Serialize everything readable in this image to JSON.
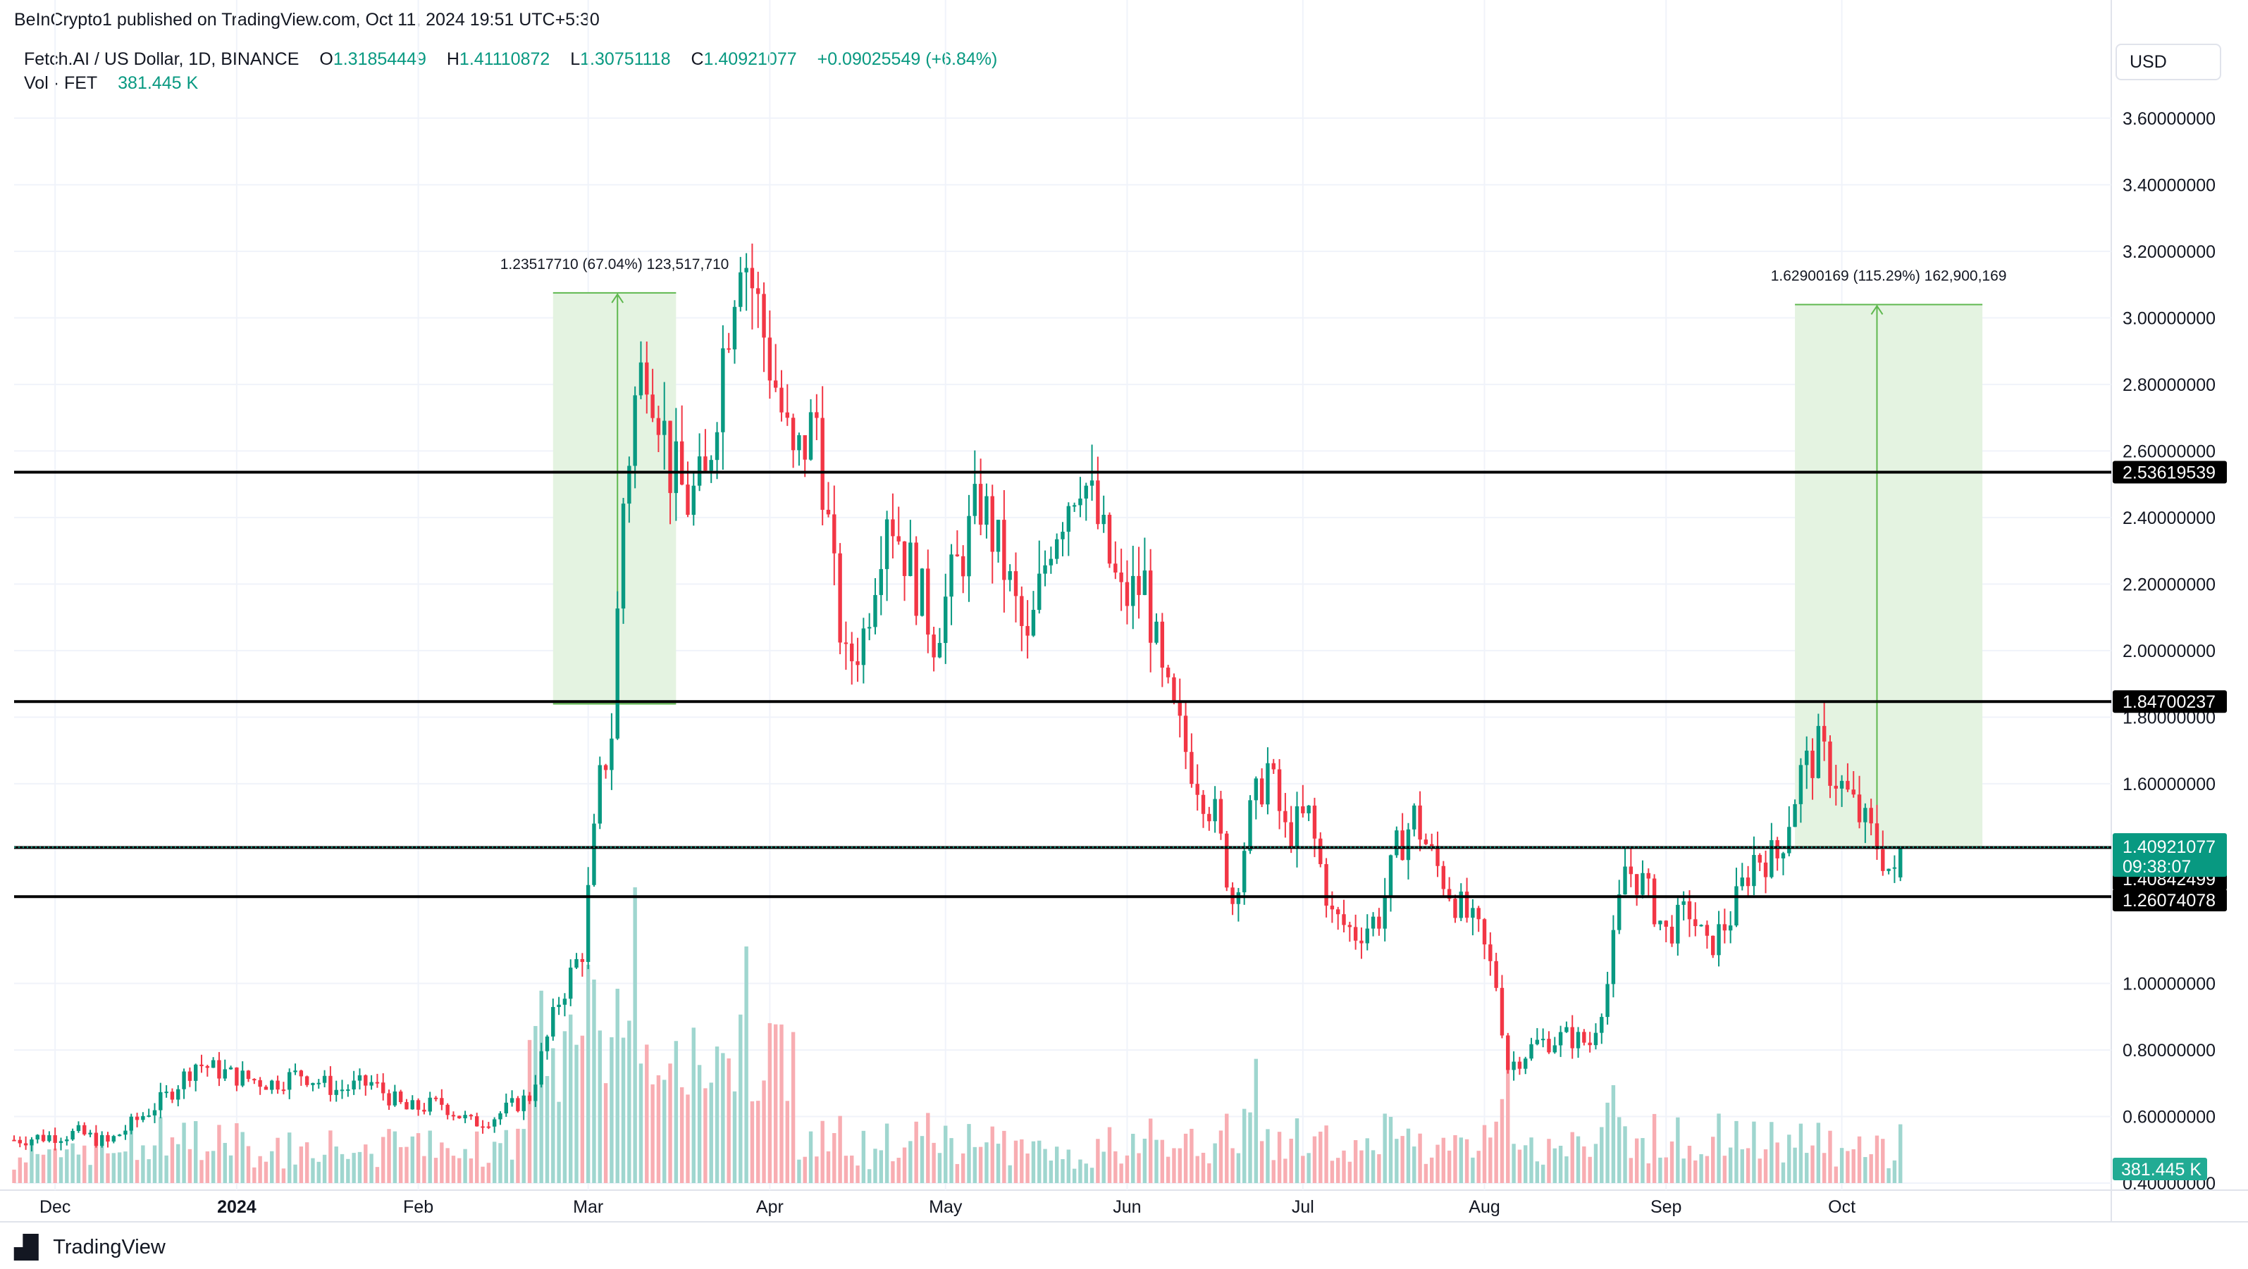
{
  "header": {
    "publisher_text": "BeInCrypto1 published on TradingView.com, Oct 11, 2024 19:51 UTC+5:30"
  },
  "legend": {
    "symbol": "Fetch.AI / US Dollar, 1D, BINANCE",
    "open_label": "O",
    "open": "1.31854449",
    "high_label": "H",
    "high": "1.41110872",
    "low_label": "L",
    "low": "1.30751118",
    "close_label": "C",
    "close": "1.40921077",
    "change": "+0.09025549 (+6.84%)",
    "volume_label": "Vol · FET",
    "volume": "381.445 K"
  },
  "currency_button": "USD",
  "footer": {
    "brand": "TradingView"
  },
  "colors": {
    "up": "#089981",
    "down": "#f23645",
    "up_volume": "#9fd6cf",
    "down_volume": "#f8adb2",
    "measure_fill": "#e4f3e1",
    "measure_line": "#5fb84f"
  },
  "chart_data": {
    "type": "candlestick",
    "symbol": "FETUSD",
    "interval": "1D",
    "y_axis": {
      "scale": "linear",
      "range": [
        0.4,
        3.68
      ],
      "ticks": [
        "3.60000000",
        "3.40000000",
        "3.20000000",
        "3.00000000",
        "2.80000000",
        "2.60000000",
        "2.40000000",
        "2.20000000",
        "2.00000000",
        "1.80000000",
        "1.60000000",
        "1.00000000",
        "0.80000000",
        "0.60000000",
        "0.40000000"
      ]
    },
    "x_axis": {
      "ticks": [
        {
          "label": "Dec",
          "date": "2023-12-01",
          "bold": false
        },
        {
          "label": "2024",
          "date": "2024-01-01",
          "bold": true
        },
        {
          "label": "Feb",
          "date": "2024-02-01",
          "bold": false
        },
        {
          "label": "Mar",
          "date": "2024-03-01",
          "bold": false
        },
        {
          "label": "Apr",
          "date": "2024-04-01",
          "bold": false
        },
        {
          "label": "May",
          "date": "2024-05-01",
          "bold": false
        },
        {
          "label": "Jun",
          "date": "2024-06-01",
          "bold": false
        },
        {
          "label": "Jul",
          "date": "2024-07-01",
          "bold": false
        },
        {
          "label": "Aug",
          "date": "2024-08-01",
          "bold": false
        },
        {
          "label": "Sep",
          "date": "2024-09-01",
          "bold": false
        },
        {
          "label": "Oct",
          "date": "2024-10-01",
          "bold": false
        }
      ],
      "start": "2023-11-24",
      "end": "2024-11-16"
    },
    "price_path": [
      [
        "2023-11-24",
        0.53
      ],
      [
        "2023-12-05",
        0.55
      ],
      [
        "2023-12-10",
        0.52
      ],
      [
        "2023-12-20",
        0.66
      ],
      [
        "2023-12-25",
        0.76
      ],
      [
        "2024-01-01",
        0.72
      ],
      [
        "2024-01-07",
        0.7
      ],
      [
        "2024-01-12",
        0.73
      ],
      [
        "2024-01-18",
        0.68
      ],
      [
        "2024-01-24",
        0.7
      ],
      [
        "2024-01-30",
        0.62
      ],
      [
        "2024-02-05",
        0.64
      ],
      [
        "2024-02-10",
        0.58
      ],
      [
        "2024-02-14",
        0.6
      ],
      [
        "2024-02-20",
        0.66
      ],
      [
        "2024-02-25",
        0.95
      ],
      [
        "2024-02-29",
        1.1
      ],
      [
        "2024-03-03",
        1.6
      ],
      [
        "2024-03-05",
        1.76
      ],
      [
        "2024-03-07",
        2.45
      ],
      [
        "2024-03-09",
        2.75
      ],
      [
        "2024-03-11",
        2.9
      ],
      [
        "2024-03-13",
        2.75
      ],
      [
        "2024-03-15",
        2.55
      ],
      [
        "2024-03-18",
        2.45
      ],
      [
        "2024-03-21",
        2.5
      ],
      [
        "2024-03-24",
        2.9
      ],
      [
        "2024-03-27",
        3.25
      ],
      [
        "2024-03-29",
        3.1
      ],
      [
        "2024-04-02",
        2.8
      ],
      [
        "2024-04-05",
        2.55
      ],
      [
        "2024-04-09",
        2.7
      ],
      [
        "2024-04-12",
        2.2
      ],
      [
        "2024-04-14",
        1.95
      ],
      [
        "2024-04-17",
        2.05
      ],
      [
        "2024-04-21",
        2.45
      ],
      [
        "2024-04-25",
        2.25
      ],
      [
        "2024-04-29",
        2.05
      ],
      [
        "2024-05-03",
        2.25
      ],
      [
        "2024-05-07",
        2.45
      ],
      [
        "2024-05-11",
        2.25
      ],
      [
        "2024-05-15",
        2.0
      ],
      [
        "2024-05-19",
        2.35
      ],
      [
        "2024-05-24",
        2.55
      ],
      [
        "2024-05-27",
        2.38
      ],
      [
        "2024-05-31",
        2.15
      ],
      [
        "2024-06-04",
        2.2
      ],
      [
        "2024-06-07",
        1.9
      ],
      [
        "2024-06-11",
        1.7
      ],
      [
        "2024-06-16",
        1.5
      ],
      [
        "2024-06-19",
        1.25
      ],
      [
        "2024-06-22",
        1.5
      ],
      [
        "2024-06-25",
        1.65
      ],
      [
        "2024-06-28",
        1.45
      ],
      [
        "2024-07-02",
        1.5
      ],
      [
        "2024-07-06",
        1.2
      ],
      [
        "2024-07-10",
        1.15
      ],
      [
        "2024-07-14",
        1.2
      ],
      [
        "2024-07-17",
        1.4
      ],
      [
        "2024-07-20",
        1.5
      ],
      [
        "2024-07-23",
        1.38
      ],
      [
        "2024-07-27",
        1.25
      ],
      [
        "2024-07-31",
        1.15
      ],
      [
        "2024-08-03",
        1.0
      ],
      [
        "2024-08-05",
        0.75
      ],
      [
        "2024-08-10",
        0.82
      ],
      [
        "2024-08-15",
        0.84
      ],
      [
        "2024-08-19",
        0.82
      ],
      [
        "2024-08-22",
        1.0
      ],
      [
        "2024-08-25",
        1.35
      ],
      [
        "2024-08-28",
        1.3
      ],
      [
        "2024-09-01",
        1.15
      ],
      [
        "2024-09-05",
        1.22
      ],
      [
        "2024-09-08",
        1.1
      ],
      [
        "2024-09-12",
        1.2
      ],
      [
        "2024-09-16",
        1.38
      ],
      [
        "2024-09-20",
        1.38
      ],
      [
        "2024-09-24",
        1.63
      ],
      [
        "2024-09-27",
        1.7
      ],
      [
        "2024-09-30",
        1.62
      ],
      [
        "2024-10-04",
        1.5
      ],
      [
        "2024-10-07",
        1.42
      ],
      [
        "2024-10-10",
        1.31
      ],
      [
        "2024-10-11",
        1.41
      ]
    ],
    "last_bar": {
      "date": "2024-10-11",
      "open": 1.31854449,
      "high": 1.41110872,
      "low": 1.30751118,
      "close": 1.40921077
    },
    "volume": {
      "last": "381.445 K",
      "spikes": [
        {
          "date": "2024-03-09",
          "relative": 1.0
        },
        {
          "date": "2024-03-28",
          "relative": 0.8
        },
        {
          "date": "2024-08-05",
          "relative": 0.46
        },
        {
          "date": "2024-06-23",
          "relative": 0.42
        }
      ]
    },
    "horizontal_lines": [
      {
        "price": 2.53619539,
        "label": "2.53619539"
      },
      {
        "price": 1.84700237,
        "label": "1.84700237"
      },
      {
        "price": 1.40842499,
        "label": "1.40842499"
      },
      {
        "price": 1.26074078,
        "label": "1.26074078"
      }
    ],
    "last_price_line": {
      "price": 1.40921077,
      "label": "1.40921077",
      "countdown": "09:38:07"
    },
    "volume_label": "381.445 K",
    "measurements": [
      {
        "start_date": "2024-02-24",
        "end_date": "2024-03-16",
        "bottom": 1.84,
        "top": 3.075,
        "arrow_date": "2024-03-06",
        "label": "1.23517710 (67.04%) 123,517,710"
      },
      {
        "start_date": "2024-09-23",
        "end_date": "2024-10-25",
        "bottom": 1.41,
        "top": 3.04,
        "arrow_date": "2024-10-07",
        "label": "1.62900169 (115.29%) 162,900,169"
      }
    ]
  }
}
